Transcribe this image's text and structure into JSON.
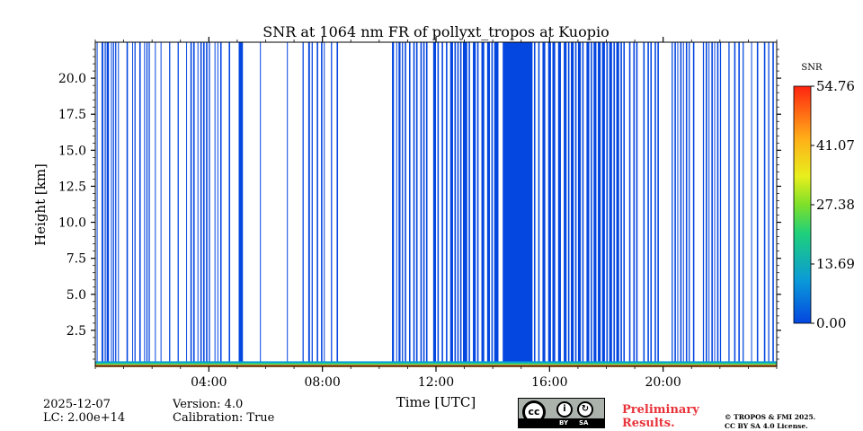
{
  "chart_data": {
    "type": "heatmap",
    "title": "SNR at 1064 nm FR of pollyxt_tropos at Kuopio",
    "xlabel": "Time [UTC]",
    "ylabel": "Height [km]",
    "xlim": [
      0,
      24
    ],
    "ylim": [
      0,
      22.5
    ],
    "x_ticks": [
      4,
      8,
      12,
      16,
      20
    ],
    "x_tick_labels": [
      "04:00",
      "08:00",
      "12:00",
      "16:00",
      "20:00"
    ],
    "y_ticks": [
      2.5,
      5.0,
      7.5,
      10.0,
      12.5,
      15.0,
      17.5,
      20.0
    ],
    "y_tick_labels": [
      "2.5",
      "5.0",
      "7.5",
      "10.0",
      "12.5",
      "15.0",
      "17.5",
      "20.0"
    ],
    "colorbar": {
      "label": "SNR",
      "range": [
        0.0,
        54.76
      ],
      "ticks": [
        0.0,
        13.69,
        27.38,
        41.07,
        54.76
      ],
      "tick_labels": [
        "0.00",
        "13.69",
        "27.38",
        "41.07",
        "54.76"
      ]
    },
    "no_signal_color": "#0446e0",
    "near_surface_layer_km": [
      0,
      0.35
    ],
    "profile_intervals_hours": [
      [
        0.05,
        0.08
      ],
      [
        0.22,
        0.28
      ],
      [
        0.33,
        0.37
      ],
      [
        0.4,
        0.48
      ],
      [
        0.55,
        0.58
      ],
      [
        0.62,
        0.66
      ],
      [
        0.7,
        0.74
      ],
      [
        0.8,
        0.83
      ],
      [
        1.1,
        1.15
      ],
      [
        1.3,
        1.33
      ],
      [
        1.38,
        1.42
      ],
      [
        1.55,
        1.6
      ],
      [
        1.72,
        1.75
      ],
      [
        1.8,
        1.84
      ],
      [
        1.88,
        1.92
      ],
      [
        2.1,
        2.13
      ],
      [
        2.3,
        2.33
      ],
      [
        2.6,
        2.64
      ],
      [
        2.9,
        2.94
      ],
      [
        3.2,
        3.23
      ],
      [
        3.35,
        3.4
      ],
      [
        3.45,
        3.5
      ],
      [
        3.6,
        3.63
      ],
      [
        3.7,
        3.75
      ],
      [
        3.8,
        3.85
      ],
      [
        3.9,
        3.95
      ],
      [
        4.0,
        4.04
      ],
      [
        4.2,
        4.23
      ],
      [
        4.3,
        4.33
      ],
      [
        4.4,
        4.45
      ],
      [
        4.7,
        4.75
      ],
      [
        5.05,
        5.2
      ],
      [
        5.8,
        5.83
      ],
      [
        6.75,
        6.78
      ],
      [
        7.3,
        7.34
      ],
      [
        7.5,
        7.56
      ],
      [
        7.62,
        7.66
      ],
      [
        7.8,
        7.85
      ],
      [
        7.95,
        8.0
      ],
      [
        8.05,
        8.08
      ],
      [
        8.3,
        8.34
      ],
      [
        8.5,
        8.55
      ],
      [
        10.45,
        10.52
      ],
      [
        10.6,
        10.63
      ],
      [
        10.68,
        10.75
      ],
      [
        10.8,
        10.84
      ],
      [
        10.9,
        10.95
      ],
      [
        11.05,
        11.1
      ],
      [
        11.2,
        11.25
      ],
      [
        11.3,
        11.35
      ],
      [
        11.45,
        11.5
      ],
      [
        11.55,
        11.6
      ],
      [
        11.65,
        11.7
      ],
      [
        11.9,
        12.0
      ],
      [
        12.05,
        12.1
      ],
      [
        12.2,
        12.25
      ],
      [
        12.35,
        12.4
      ],
      [
        12.5,
        12.6
      ],
      [
        12.65,
        12.7
      ],
      [
        12.75,
        12.8
      ],
      [
        12.85,
        12.9
      ],
      [
        12.95,
        13.1
      ],
      [
        13.15,
        13.2
      ],
      [
        13.3,
        13.4
      ],
      [
        13.45,
        13.5
      ],
      [
        13.6,
        13.7
      ],
      [
        13.8,
        13.9
      ],
      [
        13.95,
        14.0
      ],
      [
        14.05,
        14.2
      ],
      [
        14.35,
        15.4
      ],
      [
        15.45,
        15.5
      ],
      [
        15.6,
        15.65
      ],
      [
        15.75,
        15.85
      ],
      [
        15.95,
        16.05
      ],
      [
        16.1,
        16.2
      ],
      [
        16.3,
        16.4
      ],
      [
        16.5,
        16.6
      ],
      [
        16.65,
        16.7
      ],
      [
        16.75,
        16.85
      ],
      [
        16.9,
        16.95
      ],
      [
        17.0,
        17.1
      ],
      [
        17.15,
        17.2
      ],
      [
        17.3,
        17.4
      ],
      [
        17.45,
        17.5
      ],
      [
        17.55,
        17.65
      ],
      [
        17.7,
        17.8
      ],
      [
        17.85,
        17.95
      ],
      [
        18.0,
        18.05
      ],
      [
        18.1,
        18.2
      ],
      [
        18.25,
        18.3
      ],
      [
        18.35,
        18.45
      ],
      [
        18.5,
        18.55
      ],
      [
        18.6,
        18.65
      ],
      [
        18.8,
        18.85
      ],
      [
        18.95,
        19.0
      ],
      [
        19.05,
        19.1
      ],
      [
        19.3,
        19.35
      ],
      [
        19.45,
        19.5
      ],
      [
        19.55,
        19.6
      ],
      [
        19.7,
        19.75
      ],
      [
        19.8,
        19.85
      ],
      [
        20.3,
        20.34
      ],
      [
        20.4,
        20.45
      ],
      [
        20.5,
        20.53
      ],
      [
        20.6,
        20.65
      ],
      [
        20.7,
        20.72
      ],
      [
        20.8,
        20.85
      ],
      [
        20.9,
        20.94
      ],
      [
        21.05,
        21.1
      ],
      [
        21.4,
        21.44
      ],
      [
        21.5,
        21.55
      ],
      [
        21.6,
        21.63
      ],
      [
        21.7,
        21.75
      ],
      [
        21.8,
        21.83
      ],
      [
        21.9,
        21.95
      ],
      [
        22.0,
        22.04
      ],
      [
        22.3,
        22.34
      ],
      [
        22.5,
        22.55
      ],
      [
        22.65,
        22.7
      ],
      [
        22.8,
        22.84
      ],
      [
        23.1,
        23.13
      ],
      [
        23.3,
        23.35
      ],
      [
        23.55,
        23.6
      ],
      [
        23.7,
        23.74
      ],
      [
        23.85,
        23.9
      ]
    ]
  },
  "meta": {
    "date": "2025-12-07",
    "lc": "LC: 2.00e+14",
    "version": "Version: 4.0",
    "calibration": "Calibration: True"
  },
  "license": {
    "badge_cc": "cc",
    "badge_by": "BY",
    "badge_sa": "SA",
    "preliminary_line1": "Preliminary",
    "preliminary_line2": "Results.",
    "copyright_line1": "© TROPOS & FMI 2025.",
    "copyright_line2": "CC BY SA 4.0 License."
  }
}
